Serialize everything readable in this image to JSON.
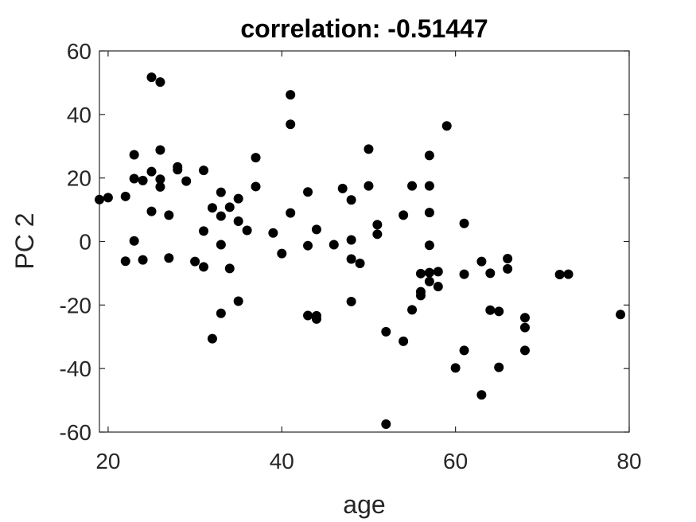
{
  "chart_data": {
    "type": "scatter",
    "title": "correlation: -0.51447",
    "xlabel": "age",
    "ylabel": "PC 2",
    "xlim": [
      19,
      80
    ],
    "ylim": [
      -60,
      60
    ],
    "xticks": [
      20,
      40,
      60,
      80
    ],
    "yticks": [
      -60,
      -40,
      -20,
      0,
      20,
      40,
      60
    ],
    "xtick_labels": [
      "20",
      "40",
      "60",
      "80"
    ],
    "ytick_labels": [
      "-60",
      "-40",
      "-20",
      "0",
      "20",
      "40",
      "60"
    ],
    "grid": false,
    "marker_color": "#000000",
    "series": [
      {
        "points": [
          [
            19,
            13.2
          ],
          [
            20,
            13.8
          ],
          [
            22,
            14.2
          ],
          [
            22,
            -6.2
          ],
          [
            23,
            27.3
          ],
          [
            23,
            19.8
          ],
          [
            23,
            0.2
          ],
          [
            24,
            19.2
          ],
          [
            24,
            -5.8
          ],
          [
            25,
            51.7
          ],
          [
            25,
            22.0
          ],
          [
            25,
            9.5
          ],
          [
            26,
            50.2
          ],
          [
            26,
            28.8
          ],
          [
            26,
            19.6
          ],
          [
            26,
            17.2
          ],
          [
            27,
            8.3
          ],
          [
            27,
            -5.2
          ],
          [
            28,
            23.5
          ],
          [
            28,
            22.6
          ],
          [
            29,
            19.0
          ],
          [
            30,
            -6.3
          ],
          [
            31,
            22.4
          ],
          [
            31,
            3.3
          ],
          [
            31,
            -8.0
          ],
          [
            32,
            10.6
          ],
          [
            32,
            -30.6
          ],
          [
            33,
            15.5
          ],
          [
            33,
            8.0
          ],
          [
            33,
            -1.0
          ],
          [
            33,
            -22.6
          ],
          [
            34,
            10.8
          ],
          [
            34,
            -8.5
          ],
          [
            35,
            13.5
          ],
          [
            35,
            6.4
          ],
          [
            35,
            -18.8
          ],
          [
            36,
            3.5
          ],
          [
            37,
            26.4
          ],
          [
            37,
            17.3
          ],
          [
            39,
            2.7
          ],
          [
            40,
            -3.8
          ],
          [
            41,
            46.2
          ],
          [
            41,
            36.9
          ],
          [
            41,
            9.0
          ],
          [
            43,
            15.6
          ],
          [
            43,
            -1.3
          ],
          [
            43,
            -23.3
          ],
          [
            44,
            3.8
          ],
          [
            44,
            -23.4
          ],
          [
            44,
            -24.4
          ],
          [
            46,
            -1.0
          ],
          [
            47,
            16.7
          ],
          [
            48,
            13.1
          ],
          [
            48,
            0.5
          ],
          [
            48,
            -5.5
          ],
          [
            48,
            -18.9
          ],
          [
            49,
            -6.9
          ],
          [
            50,
            29.1
          ],
          [
            50,
            17.5
          ],
          [
            51,
            5.3
          ],
          [
            51,
            2.3
          ],
          [
            52,
            -28.4
          ],
          [
            52,
            -57.5
          ],
          [
            54,
            8.3
          ],
          [
            54,
            -31.4
          ],
          [
            55,
            17.5
          ],
          [
            55,
            -21.5
          ],
          [
            56,
            -10.1
          ],
          [
            56,
            -15.8
          ],
          [
            56,
            -17.0
          ],
          [
            57,
            27.1
          ],
          [
            57,
            17.5
          ],
          [
            57,
            9.1
          ],
          [
            57,
            -1.2
          ],
          [
            57,
            -9.8
          ],
          [
            57,
            -12.6
          ],
          [
            58,
            -9.5
          ],
          [
            58,
            -14.2
          ],
          [
            59,
            36.4
          ],
          [
            60,
            -39.8
          ],
          [
            61,
            5.7
          ],
          [
            61,
            -10.3
          ],
          [
            61,
            -34.3
          ],
          [
            63,
            -6.3
          ],
          [
            63,
            -48.3
          ],
          [
            64,
            -10.0
          ],
          [
            64,
            -21.6
          ],
          [
            65,
            -22.0
          ],
          [
            65,
            -39.6
          ],
          [
            66,
            -5.4
          ],
          [
            66,
            -8.6
          ],
          [
            68,
            -24.0
          ],
          [
            68,
            -27.1
          ],
          [
            68,
            -34.3
          ],
          [
            72,
            -10.4
          ],
          [
            73,
            -10.3
          ],
          [
            79,
            -23.0
          ]
        ]
      }
    ]
  }
}
